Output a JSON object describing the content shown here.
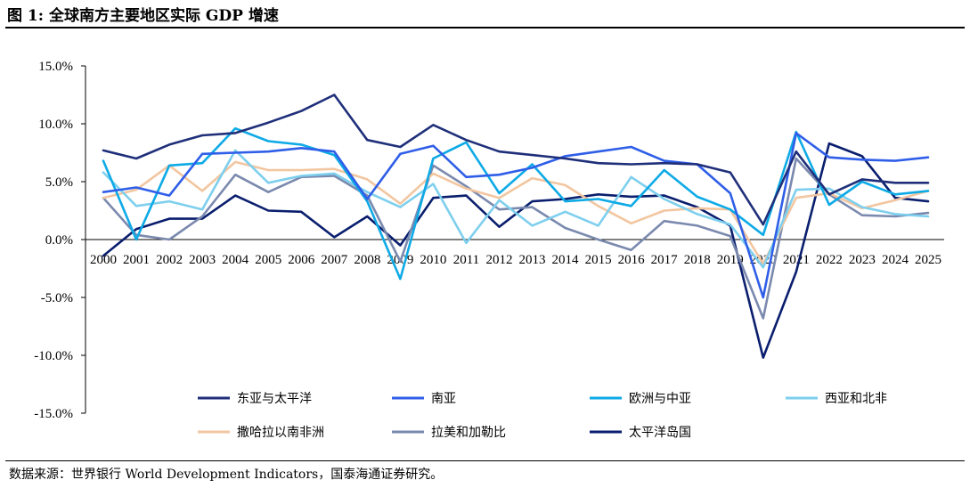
{
  "header": {
    "title": "图 1:  全球南方主要地区实际 GDP 增速"
  },
  "footer": {
    "source": "数据来源：世界银行 World Development Indicators，国泰海通证券研究。"
  },
  "chart_data": {
    "type": "line",
    "title": "",
    "xlabel": "",
    "ylabel": "",
    "ylim": [
      -15,
      15
    ],
    "yticks": [
      -15,
      -10,
      -5,
      0,
      5,
      10,
      15
    ],
    "ytick_labels": [
      "-15.0%",
      "-10.0%",
      "-5.0%",
      "0.0%",
      "5.0%",
      "10.0%",
      "15.0%"
    ],
    "grid": false,
    "legend_position": "bottom",
    "categories": [
      "2000",
      "2001",
      "2002",
      "2003",
      "2004",
      "2005",
      "2006",
      "2007",
      "2008",
      "2009",
      "2010",
      "2011",
      "2012",
      "2013",
      "2014",
      "2015",
      "2016",
      "2017",
      "2018",
      "2019",
      "2020",
      "2021",
      "2022",
      "2023",
      "2024",
      "2025"
    ],
    "series": [
      {
        "name": "东亚与太平洋",
        "color": "#1f2f7a",
        "values": [
          7.7,
          7.0,
          8.2,
          9.0,
          9.2,
          10.1,
          11.1,
          12.5,
          8.6,
          8.0,
          9.9,
          8.6,
          7.6,
          7.3,
          7.0,
          6.6,
          6.5,
          6.6,
          6.5,
          5.8,
          1.3,
          7.6,
          3.9,
          5.2,
          4.9,
          4.9
        ]
      },
      {
        "name": "南亚",
        "color": "#2f5ee8",
        "values": [
          4.1,
          4.5,
          3.8,
          7.4,
          7.5,
          7.6,
          7.9,
          7.6,
          3.5,
          7.4,
          8.1,
          5.4,
          5.6,
          6.2,
          7.2,
          7.6,
          8.0,
          6.8,
          6.5,
          4.0,
          -5.0,
          9.2,
          7.1,
          6.9,
          6.8,
          7.1
        ]
      },
      {
        "name": "欧洲与中亚",
        "color": "#0eaae6",
        "values": [
          6.8,
          0.0,
          6.4,
          6.6,
          9.6,
          8.5,
          8.2,
          7.3,
          3.3,
          -3.4,
          7.0,
          8.4,
          4.0,
          6.5,
          3.3,
          3.5,
          2.9,
          6.0,
          3.7,
          2.6,
          0.4,
          9.3,
          3.0,
          5.0,
          3.9,
          4.2
        ]
      },
      {
        "name": "西亚和北非",
        "color": "#7ecfee",
        "values": [
          5.8,
          2.9,
          3.3,
          2.6,
          7.7,
          4.9,
          5.5,
          5.7,
          4.1,
          2.8,
          4.8,
          -0.3,
          3.4,
          1.2,
          2.4,
          1.2,
          5.4,
          3.5,
          2.2,
          1.3,
          -2.4,
          4.3,
          4.4,
          2.8,
          2.2,
          2.0
        ]
      },
      {
        "name": "撒哈拉以南非洲",
        "color": "#f2c6a0",
        "values": [
          3.6,
          4.3,
          6.4,
          4.2,
          6.7,
          6.0,
          6.0,
          6.1,
          5.2,
          3.1,
          5.7,
          4.4,
          3.6,
          5.3,
          4.7,
          2.9,
          1.4,
          2.5,
          2.7,
          2.6,
          -2.1,
          3.6,
          4.0,
          2.7,
          3.4,
          4.2
        ]
      },
      {
        "name": "拉美和加勒比",
        "color": "#7a89ae",
        "values": [
          3.6,
          0.4,
          0.0,
          2.0,
          5.6,
          4.1,
          5.4,
          5.5,
          3.8,
          -1.9,
          6.4,
          4.6,
          2.6,
          2.8,
          1.0,
          0.0,
          -0.9,
          1.6,
          1.2,
          0.3,
          -6.8,
          7.0,
          3.9,
          2.1,
          2.0,
          2.3
        ]
      },
      {
        "name": "太平洋岛国",
        "color": "#0a1e6e",
        "values": [
          -1.4,
          0.9,
          1.8,
          1.8,
          3.8,
          2.5,
          2.4,
          0.2,
          2.0,
          -0.5,
          3.6,
          3.8,
          1.1,
          3.3,
          3.5,
          3.9,
          3.7,
          3.8,
          2.8,
          1.2,
          -10.2,
          -2.8,
          8.3,
          7.2,
          3.6,
          3.3
        ]
      }
    ]
  }
}
